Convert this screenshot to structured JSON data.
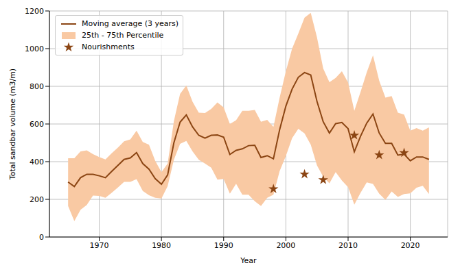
{
  "chart_data": {
    "type": "line",
    "x_label": "Year",
    "y_label": "Total sandbar volume (m3/m)",
    "xlim": [
      1962,
      2026
    ],
    "xticks": [
      1970,
      1980,
      1990,
      2000,
      2010,
      2020
    ],
    "ylim": [
      0,
      1200
    ],
    "yticks": [
      0,
      200,
      400,
      600,
      800,
      1000,
      1200
    ],
    "grid": true,
    "legend": "upper left",
    "x": [
      1965,
      1966,
      1967,
      1968,
      1969,
      1970,
      1971,
      1972,
      1973,
      1974,
      1975,
      1976,
      1977,
      1978,
      1979,
      1980,
      1981,
      1982,
      1983,
      1984,
      1985,
      1986,
      1987,
      1988,
      1989,
      1990,
      1991,
      1992,
      1993,
      1994,
      1995,
      1996,
      1997,
      1998,
      1999,
      2000,
      2001,
      2002,
      2003,
      2004,
      2005,
      2006,
      2007,
      2008,
      2009,
      2010,
      2011,
      2012,
      2013,
      2014,
      2015,
      2016,
      2017,
      2018,
      2019,
      2020,
      2021,
      2022,
      2023
    ],
    "series": [
      {
        "name": "Moving average (3 years)",
        "type": "line",
        "color": "#8b4513",
        "values": [
          292,
          268,
          315,
          333,
          333,
          325,
          315,
          348,
          380,
          412,
          420,
          448,
          390,
          360,
          310,
          280,
          330,
          500,
          610,
          648,
          585,
          540,
          525,
          540,
          542,
          530,
          438,
          460,
          468,
          485,
          487,
          422,
          432,
          415,
          570,
          695,
          785,
          848,
          873,
          860,
          720,
          612,
          552,
          602,
          608,
          575,
          452,
          535,
          605,
          653,
          552,
          497,
          497,
          435,
          440,
          405,
          425,
          425,
          412
        ]
      },
      {
        "name": "25th - 75th Percentile",
        "type": "area",
        "color": "#f9c9a3",
        "lower": [
          165,
          85,
          145,
          170,
          220,
          218,
          208,
          235,
          263,
          293,
          293,
          307,
          245,
          222,
          208,
          205,
          270,
          410,
          495,
          510,
          455,
          410,
          390,
          368,
          305,
          308,
          230,
          283,
          225,
          225,
          190,
          165,
          208,
          225,
          350,
          430,
          525,
          575,
          550,
          490,
          380,
          320,
          285,
          345,
          300,
          265,
          172,
          235,
          290,
          282,
          230,
          197,
          242,
          213,
          228,
          232,
          262,
          272,
          228
        ],
        "upper": [
          418,
          418,
          455,
          460,
          440,
          425,
          412,
          445,
          475,
          508,
          518,
          565,
          505,
          490,
          405,
          345,
          390,
          615,
          760,
          805,
          718,
          660,
          658,
          680,
          715,
          688,
          600,
          620,
          670,
          670,
          675,
          612,
          622,
          585,
          740,
          880,
          1000,
          1080,
          1165,
          1190,
          1060,
          895,
          822,
          845,
          880,
          820,
          670,
          770,
          875,
          965,
          830,
          740,
          748,
          660,
          650,
          565,
          578,
          565,
          582
        ]
      },
      {
        "name": "Nourishments",
        "type": "scatter",
        "marker": "star",
        "color": "#8b4513",
        "x": [
          1998,
          2003,
          2006,
          2011,
          2015,
          2019
        ],
        "values": [
          255,
          333,
          303,
          540,
          435,
          447
        ]
      }
    ]
  }
}
